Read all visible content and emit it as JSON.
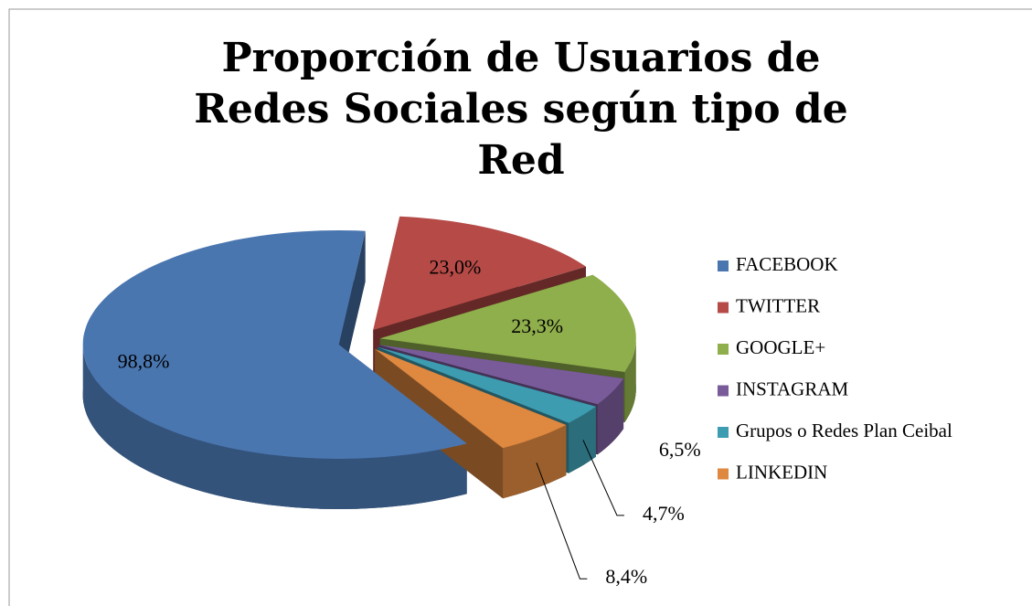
{
  "chart_data": {
    "type": "pie3d",
    "title": "Proporción de Usuarios de Redes Sociales según tipo de Red",
    "categories": [
      "FACEBOOK",
      "TWITTER",
      "GOOGLE+",
      "INSTAGRAM",
      "Grupos o Redes Plan Ceibal",
      "LINKEDIN"
    ],
    "values": [
      98.8,
      23.0,
      23.3,
      6.5,
      4.7,
      8.4
    ],
    "value_labels": [
      "98,8%",
      "23,0%",
      "23,3%",
      "6,5%",
      "4,7%",
      "8,4%"
    ],
    "colors": [
      "#4a76b0",
      "#b54a47",
      "#8fae4c",
      "#7a5b9a",
      "#3d9cb0",
      "#de8840"
    ],
    "legend": "right"
  }
}
